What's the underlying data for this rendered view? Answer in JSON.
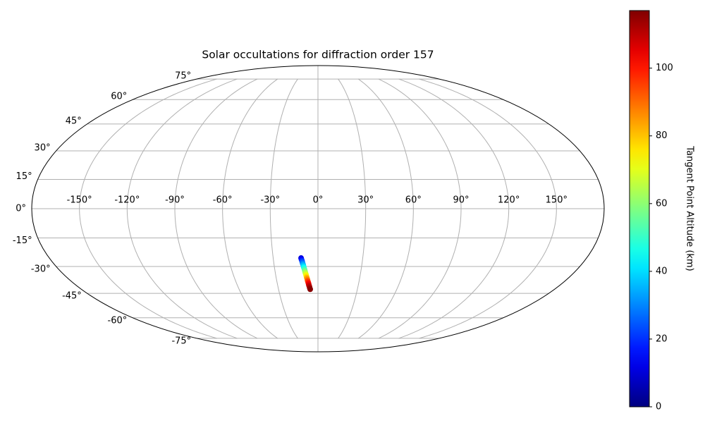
{
  "chart_data": {
    "type": "scatter",
    "projection": "mollweide",
    "title": "Solar occultations for diffraction order 157",
    "x": [
      -11.3,
      -11.1,
      -10.8,
      -10.6,
      -10.4,
      -10.1,
      -9.9,
      -9.7,
      -9.4,
      -9.2,
      -9.0,
      -8.8,
      -8.5,
      -8.3,
      -8.1,
      -7.8,
      -7.6,
      -7.4,
      -7.1,
      -6.9,
      -6.7,
      -6.4,
      -6.2,
      -5.9
    ],
    "values": [
      -25.5,
      -26.2,
      -26.9,
      -27.6,
      -28.4,
      -29.1,
      -29.9,
      -30.6,
      -31.4,
      -32.1,
      -32.9,
      -33.6,
      -34.4,
      -35.1,
      -35.9,
      -36.6,
      -37.4,
      -38.1,
      -38.9,
      -39.6,
      -40.4,
      -41.1,
      -41.9,
      -42.6
    ],
    "color_values": [
      10,
      15,
      20,
      25,
      30,
      35,
      40,
      45,
      50,
      55,
      60,
      65,
      70,
      75,
      80,
      85,
      90,
      95,
      100,
      104,
      108,
      111,
      114,
      116
    ],
    "colormap": "jet",
    "xlim": [
      -180,
      180
    ],
    "ylim": [
      -90,
      90
    ],
    "xticks": [
      {
        "value": -150,
        "label": "-150°"
      },
      {
        "value": -120,
        "label": "-120°"
      },
      {
        "value": -90,
        "label": "-90°"
      },
      {
        "value": -60,
        "label": "-60°"
      },
      {
        "value": -30,
        "label": "-30°"
      },
      {
        "value": 0,
        "label": "0°"
      },
      {
        "value": 30,
        "label": "30°"
      },
      {
        "value": 60,
        "label": "60°"
      },
      {
        "value": 90,
        "label": "90°"
      },
      {
        "value": 120,
        "label": "120°"
      },
      {
        "value": 150,
        "label": "150°"
      }
    ],
    "yticks": [
      {
        "value": -75,
        "label": "-75°"
      },
      {
        "value": -60,
        "label": "-60°"
      },
      {
        "value": -45,
        "label": "-45°"
      },
      {
        "value": -30,
        "label": "-30°"
      },
      {
        "value": -15,
        "label": "-15°"
      },
      {
        "value": 0,
        "label": "0°"
      },
      {
        "value": 15,
        "label": "15°"
      },
      {
        "value": 30,
        "label": "30°"
      },
      {
        "value": 45,
        "label": "45°"
      },
      {
        "value": 60,
        "label": "60°"
      },
      {
        "value": 75,
        "label": "75°"
      }
    ],
    "grid": true,
    "clim": [
      0,
      117
    ],
    "cticks": [
      0,
      20,
      40,
      60,
      80,
      100
    ],
    "colorbar_label": "Tangent Point Altitude (km)"
  }
}
